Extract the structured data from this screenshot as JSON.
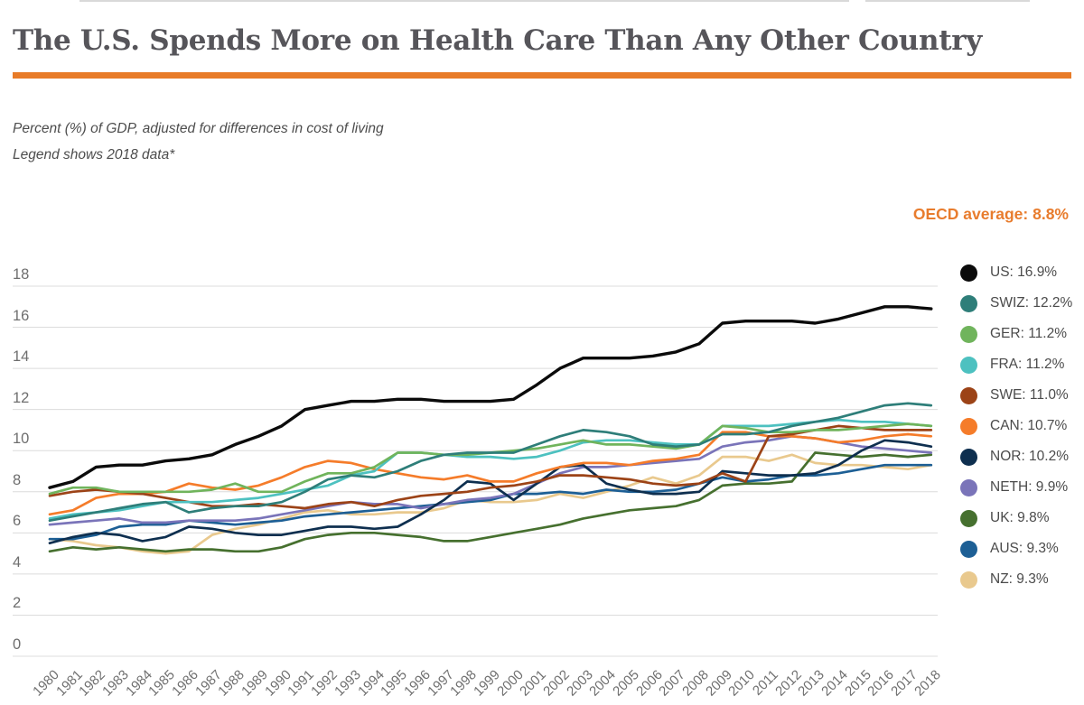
{
  "page": {
    "title": "The U.S. Spends More on Health Care Than Any Other Country",
    "subtitle_line1": "Percent (%) of GDP, adjusted for differences in cost of living",
    "subtitle_line2": "Legend shows 2018 data*",
    "oecd_average_label": "OECD average: 8.8%"
  },
  "colors": {
    "accent_orange": "#e87b28",
    "title_gray": "#56555a",
    "axis_label_gray": "#6f6f6f",
    "gridline_gray": "#dcdcdc",
    "legend_text_gray": "#4b4b4b"
  },
  "chart_data": {
    "type": "line",
    "title": "Health spending as percent of GDP, 1980-2018",
    "xlabel": "",
    "ylabel": "Percent (%) of GDP",
    "ylim": [
      0,
      18
    ],
    "y_ticks": [
      0,
      2,
      4,
      6,
      8,
      10,
      12,
      14,
      16,
      18
    ],
    "grid": true,
    "legend_position": "right",
    "x": [
      1980,
      1981,
      1982,
      1983,
      1984,
      1985,
      1986,
      1987,
      1988,
      1989,
      1990,
      1991,
      1992,
      1993,
      1994,
      1995,
      1996,
      1997,
      1998,
      1999,
      2000,
      2001,
      2002,
      2003,
      2004,
      2005,
      2006,
      2007,
      2008,
      2009,
      2010,
      2011,
      2012,
      2013,
      2014,
      2015,
      2016,
      2017,
      2018
    ],
    "series": [
      {
        "name": "US",
        "legend_label": "US: 16.9%",
        "color": "#0b0b0b",
        "values": [
          8.2,
          8.5,
          9.2,
          9.3,
          9.3,
          9.5,
          9.6,
          9.8,
          10.3,
          10.7,
          11.2,
          12.0,
          12.2,
          12.4,
          12.4,
          12.5,
          12.5,
          12.4,
          12.4,
          12.4,
          12.5,
          13.2,
          14.0,
          14.5,
          14.5,
          14.5,
          14.6,
          14.8,
          15.2,
          16.2,
          16.3,
          16.3,
          16.3,
          16.2,
          16.4,
          16.7,
          17.0,
          17.0,
          16.9
        ]
      },
      {
        "name": "SWIZ",
        "legend_label": "SWIZ: 12.2%",
        "color": "#2e7e79",
        "values": [
          6.6,
          6.8,
          7.0,
          7.2,
          7.4,
          7.5,
          7.0,
          7.2,
          7.3,
          7.3,
          7.5,
          8.0,
          8.6,
          8.8,
          8.7,
          9.0,
          9.5,
          9.8,
          9.9,
          9.9,
          9.9,
          10.3,
          10.7,
          11.0,
          10.9,
          10.7,
          10.3,
          10.2,
          10.3,
          10.8,
          10.8,
          10.9,
          11.2,
          11.4,
          11.6,
          11.9,
          12.2,
          12.3,
          12.2
        ]
      },
      {
        "name": "GER",
        "legend_label": "GER: 11.2%",
        "color": "#70b45c",
        "values": [
          7.9,
          8.2,
          8.2,
          8.0,
          8.0,
          8.0,
          8.0,
          8.1,
          8.4,
          8.0,
          8.0,
          8.5,
          8.9,
          8.9,
          9.2,
          9.9,
          9.9,
          9.8,
          9.8,
          9.9,
          10.0,
          10.1,
          10.3,
          10.5,
          10.3,
          10.3,
          10.2,
          10.1,
          10.3,
          11.2,
          11.1,
          10.9,
          10.9,
          11.0,
          11.0,
          11.1,
          11.2,
          11.3,
          11.2
        ]
      },
      {
        "name": "FRA",
        "legend_label": "FRA: 11.2%",
        "color": "#4dc1c0",
        "values": [
          6.7,
          6.9,
          7.0,
          7.1,
          7.3,
          7.5,
          7.5,
          7.5,
          7.6,
          7.7,
          7.9,
          8.1,
          8.3,
          8.8,
          9.0,
          9.9,
          9.9,
          9.8,
          9.7,
          9.7,
          9.6,
          9.7,
          10.0,
          10.4,
          10.5,
          10.5,
          10.4,
          10.3,
          10.3,
          11.2,
          11.2,
          11.2,
          11.3,
          11.4,
          11.5,
          11.4,
          11.4,
          11.3,
          11.2
        ]
      },
      {
        "name": "SWE",
        "legend_label": "SWE: 11.0%",
        "color": "#9c4317",
        "values": [
          7.8,
          8.0,
          8.1,
          8.0,
          7.9,
          7.7,
          7.5,
          7.3,
          7.3,
          7.4,
          7.3,
          7.2,
          7.4,
          7.5,
          7.3,
          7.6,
          7.8,
          7.9,
          8.0,
          8.2,
          8.3,
          8.5,
          8.8,
          8.8,
          8.7,
          8.6,
          8.4,
          8.3,
          8.4,
          8.9,
          8.5,
          10.7,
          10.8,
          11.0,
          11.2,
          11.1,
          11.0,
          11.0,
          11.0
        ]
      },
      {
        "name": "CAN",
        "legend_label": "CAN: 10.7%",
        "color": "#f57c2a",
        "values": [
          6.9,
          7.1,
          7.7,
          7.9,
          7.9,
          8.0,
          8.4,
          8.2,
          8.1,
          8.3,
          8.7,
          9.2,
          9.5,
          9.4,
          9.1,
          8.9,
          8.7,
          8.6,
          8.8,
          8.5,
          8.5,
          8.9,
          9.2,
          9.4,
          9.4,
          9.3,
          9.5,
          9.6,
          9.8,
          10.9,
          10.9,
          10.7,
          10.7,
          10.6,
          10.4,
          10.5,
          10.7,
          10.8,
          10.7
        ]
      },
      {
        "name": "NOR",
        "legend_label": "NOR: 10.2%",
        "color": "#0e2f4f",
        "values": [
          5.5,
          5.8,
          6.0,
          5.9,
          5.6,
          5.8,
          6.3,
          6.2,
          6.0,
          5.9,
          5.9,
          6.1,
          6.3,
          6.3,
          6.2,
          6.3,
          6.9,
          7.6,
          8.5,
          8.4,
          7.6,
          8.4,
          9.2,
          9.3,
          8.4,
          8.1,
          7.9,
          7.9,
          8.0,
          9.0,
          8.9,
          8.8,
          8.8,
          8.9,
          9.3,
          10.0,
          10.5,
          10.4,
          10.2
        ]
      },
      {
        "name": "NETH",
        "legend_label": "NETH: 9.9%",
        "color": "#7a74b9",
        "values": [
          6.4,
          6.5,
          6.6,
          6.7,
          6.5,
          6.5,
          6.6,
          6.6,
          6.6,
          6.7,
          6.9,
          7.1,
          7.3,
          7.5,
          7.4,
          7.4,
          7.2,
          7.4,
          7.6,
          7.7,
          7.9,
          8.4,
          8.9,
          9.2,
          9.2,
          9.3,
          9.4,
          9.5,
          9.6,
          10.2,
          10.4,
          10.5,
          10.7,
          10.6,
          10.4,
          10.2,
          10.1,
          10.0,
          9.9
        ]
      },
      {
        "name": "UK",
        "legend_label": "UK: 9.8%",
        "color": "#46702f",
        "values": [
          5.1,
          5.3,
          5.2,
          5.3,
          5.2,
          5.1,
          5.2,
          5.2,
          5.1,
          5.1,
          5.3,
          5.7,
          5.9,
          6.0,
          6.0,
          5.9,
          5.8,
          5.6,
          5.6,
          5.8,
          6.0,
          6.2,
          6.4,
          6.7,
          6.9,
          7.1,
          7.2,
          7.3,
          7.6,
          8.3,
          8.4,
          8.4,
          8.5,
          9.9,
          9.8,
          9.7,
          9.8,
          9.7,
          9.8
        ]
      },
      {
        "name": "AUS",
        "legend_label": "AUS: 9.3%",
        "color": "#1d5f95",
        "values": [
          5.7,
          5.7,
          5.9,
          6.3,
          6.4,
          6.4,
          6.6,
          6.5,
          6.4,
          6.5,
          6.6,
          6.8,
          6.9,
          7.0,
          7.1,
          7.2,
          7.3,
          7.4,
          7.5,
          7.6,
          7.9,
          7.9,
          8.0,
          7.9,
          8.1,
          8.0,
          8.0,
          8.1,
          8.4,
          8.7,
          8.5,
          8.6,
          8.8,
          8.8,
          8.9,
          9.1,
          9.3,
          9.3,
          9.3
        ]
      },
      {
        "name": "NZ",
        "legend_label": "NZ: 9.3%",
        "color": "#e9c98e",
        "values": [
          5.7,
          5.6,
          5.4,
          5.3,
          5.1,
          5.0,
          5.1,
          5.9,
          6.2,
          6.4,
          6.7,
          7.0,
          7.1,
          6.9,
          6.9,
          7.0,
          7.0,
          7.2,
          7.6,
          7.5,
          7.5,
          7.6,
          7.9,
          7.7,
          8.0,
          8.3,
          8.7,
          8.4,
          8.8,
          9.7,
          9.7,
          9.5,
          9.8,
          9.4,
          9.3,
          9.3,
          9.2,
          9.1,
          9.3
        ]
      }
    ]
  }
}
